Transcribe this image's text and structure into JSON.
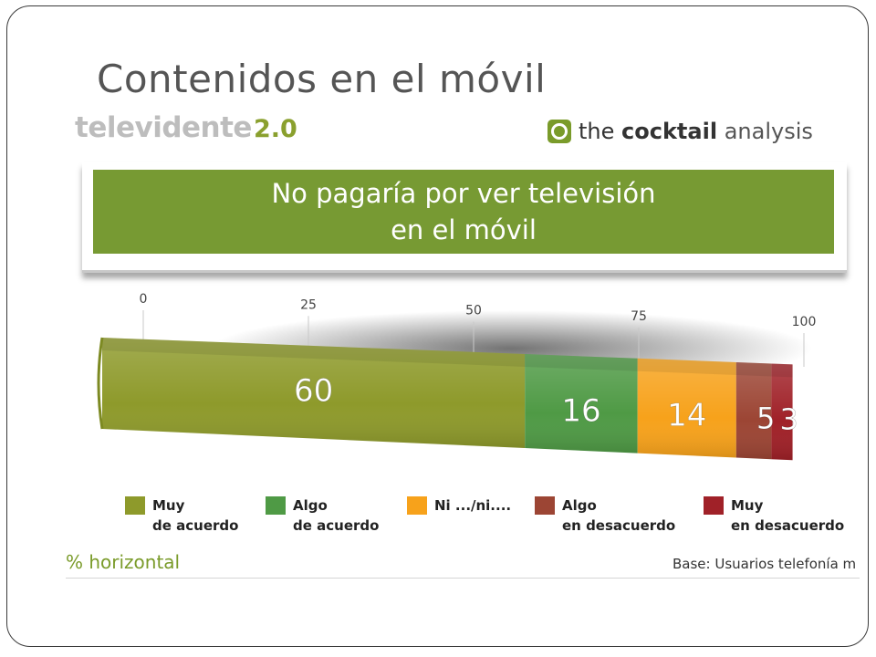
{
  "slide": {
    "title": "Contenidos en el móvil"
  },
  "logos": {
    "left_word": "televidente",
    "left_version": "2.0",
    "right_the": "the",
    "right_cocktail": "cocktail",
    "right_analysis": "analysis"
  },
  "banner": {
    "line1": "No pagaría por ver televisión",
    "line2": "en el móvil"
  },
  "footer": {
    "left": "% horizontal",
    "right": "Base: Usuarios telefonía m"
  },
  "colors": {
    "banner": "#779a33",
    "accent": "#7a9b2a"
  },
  "chart_data": {
    "type": "bar",
    "orientation": "horizontal-stacked",
    "xlim": [
      0,
      100
    ],
    "ticks": [
      "0",
      "25",
      "50",
      "75",
      "100"
    ],
    "grid": true,
    "legend_position": "bottom",
    "series": [
      {
        "name": "Muy de acuerdo",
        "legend_lines": [
          "Muy",
          "de acuerdo"
        ],
        "value": 60,
        "label": "60",
        "color": "#8e9a2b"
      },
      {
        "name": "Algo de acuerdo",
        "legend_lines": [
          "Algo",
          "de acuerdo"
        ],
        "value": 16,
        "label": "16",
        "color": "#4f9a45"
      },
      {
        "name": "Ni .../ni....",
        "legend_lines": [
          "Ni .../ni....",
          ""
        ],
        "value": 14,
        "label": "14",
        "color": "#f7a21b"
      },
      {
        "name": "Algo en desacuerdo",
        "legend_lines": [
          "Algo",
          "en desacuerdo"
        ],
        "value": 5,
        "label": "5",
        "color": "#9c4534"
      },
      {
        "name": "Muy en desacuerdo",
        "legend_lines": [
          "Muy",
          "en desacuerdo"
        ],
        "value": 3,
        "label": "3",
        "color": "#a02128"
      }
    ]
  }
}
